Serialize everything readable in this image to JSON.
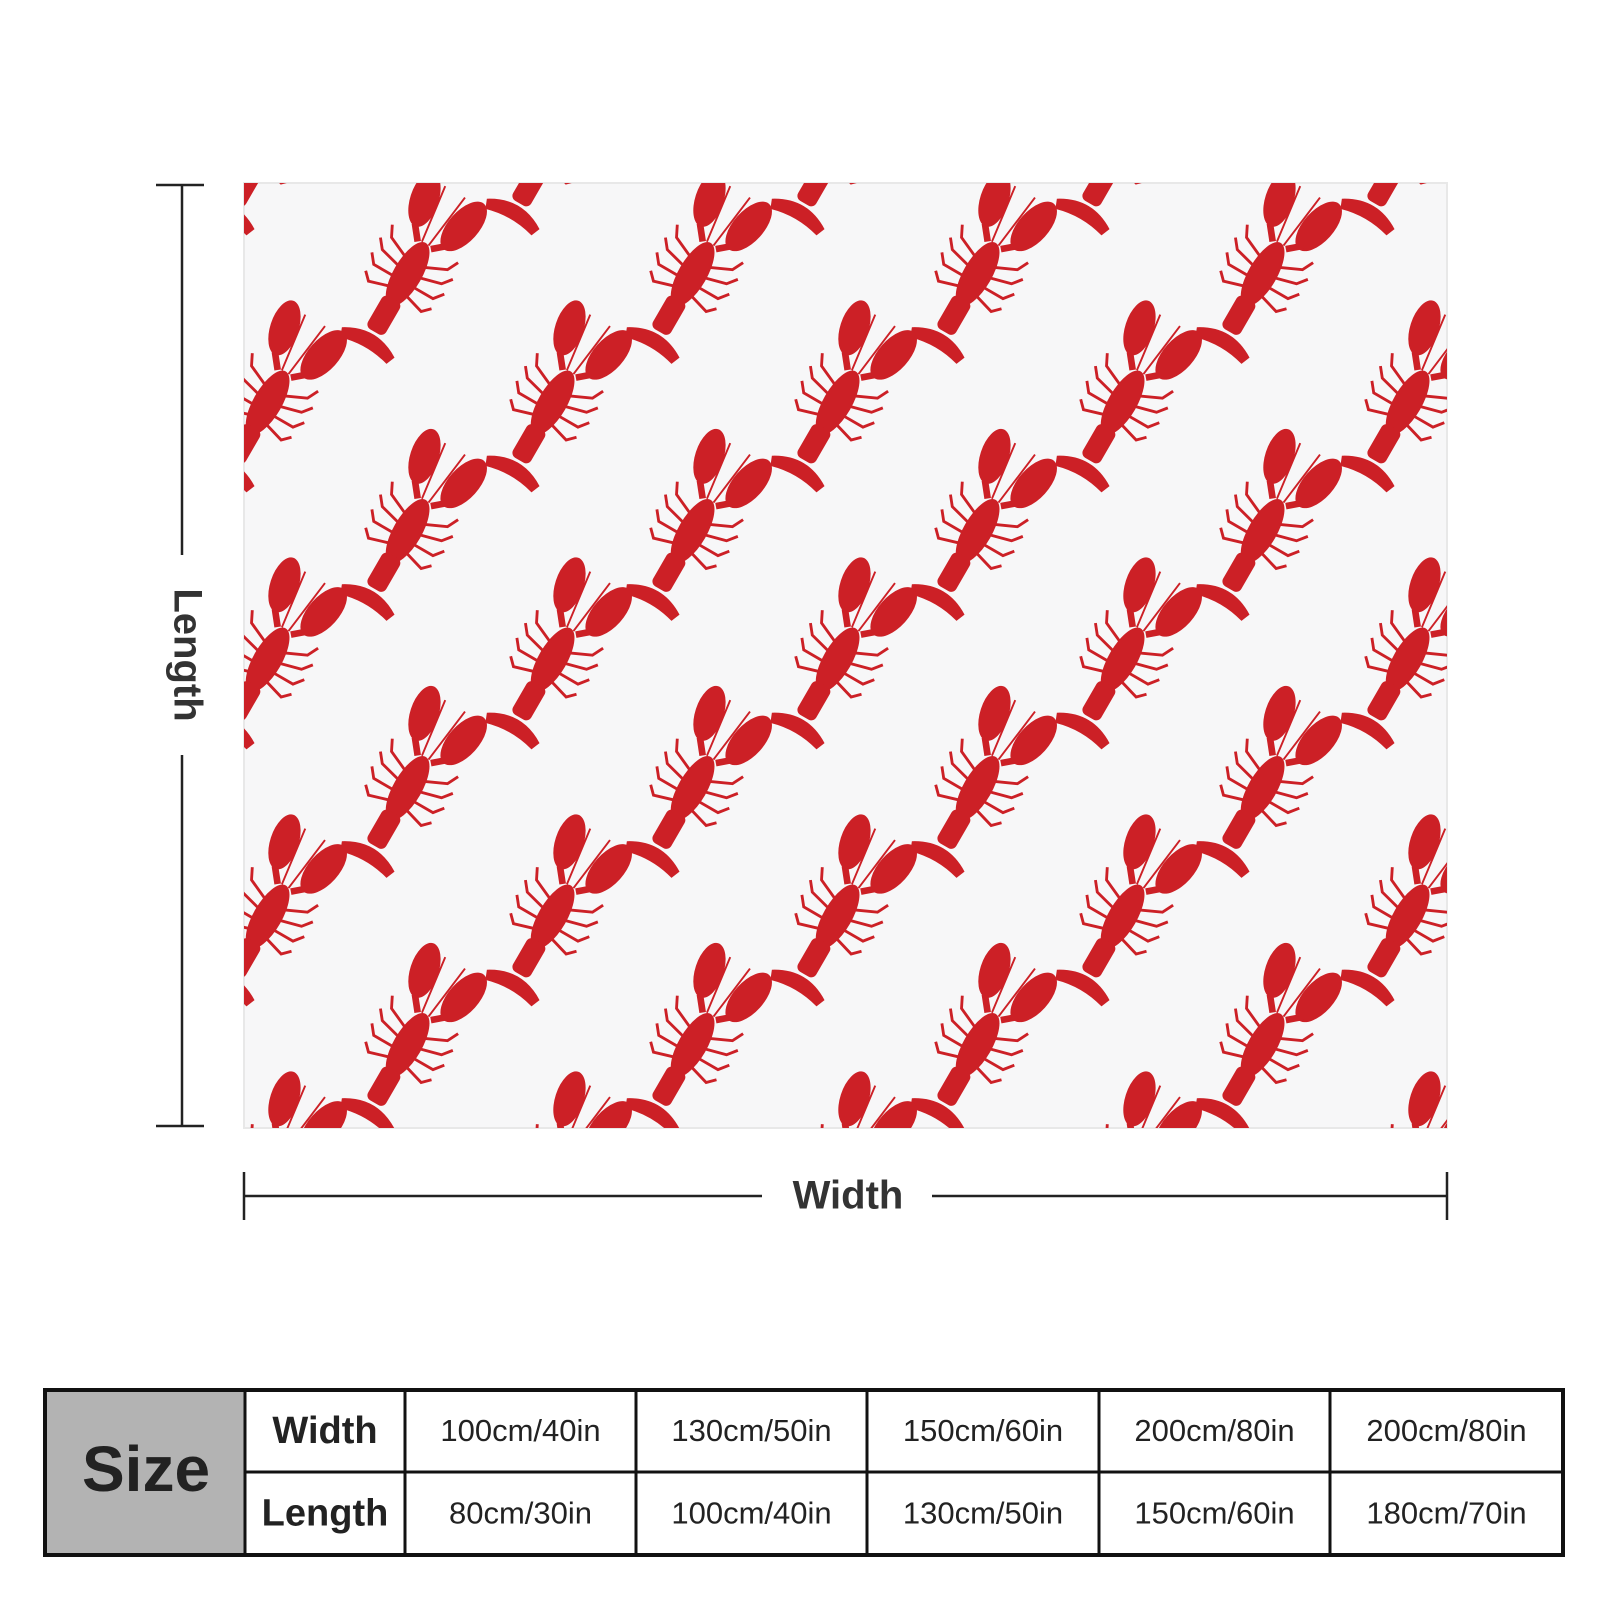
{
  "dimensions": {
    "length_label": "Length",
    "width_label": "Width"
  },
  "size_table": {
    "header": "Size",
    "rows": [
      {
        "label": "Width",
        "cells": [
          "100cm/40in",
          "130cm/50in",
          "150cm/60in",
          "200cm/80in",
          "200cm/80in"
        ]
      },
      {
        "label": "Length",
        "cells": [
          "80cm/30in",
          "100cm/40in",
          "130cm/50in",
          "150cm/60in",
          "180cm/70in"
        ]
      }
    ]
  }
}
